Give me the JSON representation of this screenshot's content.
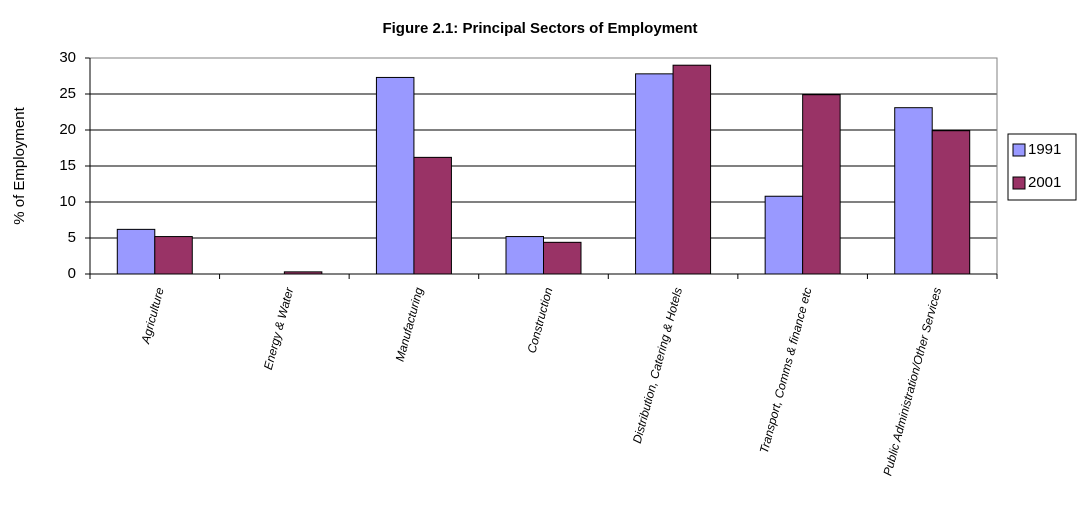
{
  "chart_data": {
    "type": "bar",
    "title": "Figure 2.1: Principal Sectors of Employment",
    "y_label": "% of Employment",
    "categories": [
      "Agriculture",
      "Energy & Water",
      "Manufacturing",
      "Construction",
      "Distribution, Catering & Hotels",
      "Transport, Comms & finance etc",
      "Public Administration/Other Services"
    ],
    "series": [
      {
        "name": "1991",
        "color": "#9999ff",
        "values": [
          6.2,
          0,
          27.3,
          5.2,
          27.8,
          10.8,
          23.1
        ]
      },
      {
        "name": "2001",
        "color": "#993366",
        "values": [
          5.2,
          0.3,
          16.2,
          4.4,
          29.0,
          24.9,
          19.9
        ]
      }
    ],
    "ylim": [
      0,
      30
    ],
    "yticks": [
      0,
      5,
      10,
      15,
      20,
      25,
      30
    ],
    "grid": true,
    "legend": "right"
  }
}
